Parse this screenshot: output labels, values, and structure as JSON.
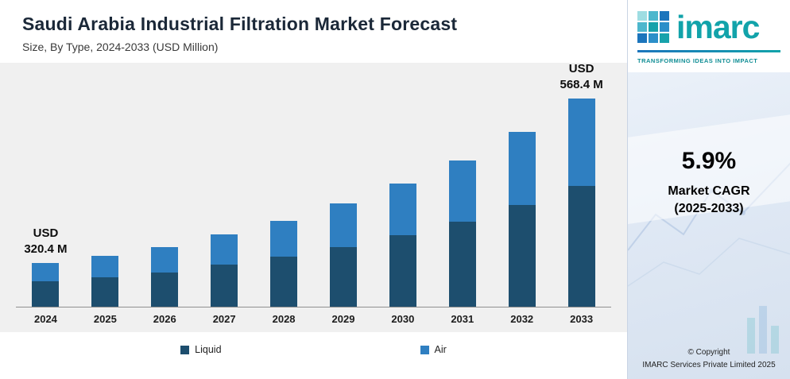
{
  "chart_data": {
    "type": "bar",
    "stacked": true,
    "title": "Saudi Arabia Industrial Filtration Market Forecast",
    "subtitle": "Size, By Type, 2024-2033 (USD Million)",
    "unit": "USD Million",
    "categories": [
      "2024",
      "2025",
      "2026",
      "2027",
      "2028",
      "2029",
      "2030",
      "2031",
      "2032",
      "2033"
    ],
    "series": [
      {
        "name": "Liquid",
        "color": "#1d4e6e",
        "values": [
          185.8,
          192.0,
          200.1,
          211.1,
          222.7,
          237.8,
          255.2,
          275.5,
          300.4,
          329.7
        ]
      },
      {
        "name": "Air",
        "color": "#2f7fc1",
        "values": [
          134.6,
          139.0,
          144.9,
          152.9,
          161.3,
          172.2,
          184.8,
          199.5,
          217.6,
          238.7
        ]
      }
    ],
    "totals": [
      320.4,
      331.0,
      345.0,
      364.0,
      384.0,
      410.0,
      440.0,
      475.0,
      518.0,
      568.4
    ],
    "annotations": [
      {
        "category": "2024",
        "lines": [
          "USD",
          "320.4 M"
        ]
      },
      {
        "category": "2033",
        "lines": [
          "USD",
          "568.4 M"
        ]
      }
    ],
    "axis": {
      "baseline_value": 255,
      "max_value": 590,
      "gridlines": false
    },
    "legend_position": "bottom"
  },
  "legend": {
    "items": [
      {
        "label": "Liquid",
        "color": "#1d4e6e"
      },
      {
        "label": "Air",
        "color": "#2f7fc1"
      }
    ]
  },
  "sidebar": {
    "logo_text": "imarc",
    "tagline": "TRANSFORMING IDEAS INTO IMPACT",
    "cagr_value": "5.9%",
    "cagr_label_line1": "Market CAGR",
    "cagr_label_line2": "(2025-2033)",
    "copyright_line1": "© Copyright",
    "copyright_line2": "IMARC Services Private Limited 2025",
    "brand_teal": "#12a3aa",
    "brand_blue": "#1c75bc"
  }
}
